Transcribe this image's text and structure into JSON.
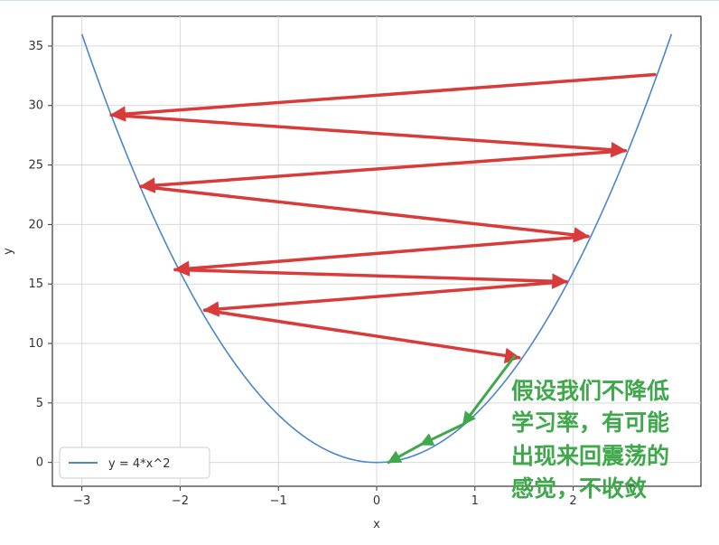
{
  "chart_data": {
    "type": "line",
    "title": "",
    "xlabel": "x",
    "ylabel": "y",
    "xlim": [
      -3.3,
      3.3
    ],
    "ylim": [
      -2,
      37.5
    ],
    "xticks": [
      -3,
      -2,
      -1,
      0,
      1,
      2
    ],
    "yticks": [
      0,
      5,
      10,
      15,
      20,
      25,
      30,
      35
    ],
    "grid": true,
    "legend_position": "lower-left",
    "series": [
      {
        "name": "y = 4*x^2",
        "color": "#4a86c8",
        "function": "4*x^2",
        "x_range": [
          -3,
          3
        ]
      }
    ],
    "annotations": {
      "red_steps_color": "#d93a3a",
      "red_steps": [
        {
          "from": [
            2.83,
            32.6
          ],
          "to": [
            -2.7,
            29.2
          ]
        },
        {
          "from": [
            -2.7,
            29.2
          ],
          "to": [
            2.53,
            26.2
          ]
        },
        {
          "from": [
            2.53,
            26.2
          ],
          "to": [
            -2.4,
            23.2
          ]
        },
        {
          "from": [
            -2.4,
            23.2
          ],
          "to": [
            2.15,
            19.0
          ]
        },
        {
          "from": [
            2.15,
            19.0
          ],
          "to": [
            -2.05,
            16.2
          ]
        },
        {
          "from": [
            -2.05,
            16.2
          ],
          "to": [
            1.93,
            15.2
          ]
        },
        {
          "from": [
            1.93,
            15.2
          ],
          "to": [
            -1.75,
            12.8
          ]
        },
        {
          "from": [
            -1.75,
            12.8
          ],
          "to": [
            1.45,
            8.8
          ]
        }
      ],
      "green_steps_color": "#3fa84a",
      "green_steps": [
        {
          "from": [
            1.4,
            8.9
          ],
          "to": [
            0.88,
            3.2
          ]
        },
        {
          "from": [
            0.88,
            3.2
          ],
          "to": [
            0.45,
            1.5
          ]
        },
        {
          "from": [
            0.45,
            1.5
          ],
          "to": [
            0.12,
            0.0
          ]
        }
      ],
      "note_color": "#3fa84a",
      "note_lines": [
        "假设我们不降低",
        "学习率，有可能",
        "出现来回震荡的",
        "感觉，不收敛"
      ]
    }
  }
}
